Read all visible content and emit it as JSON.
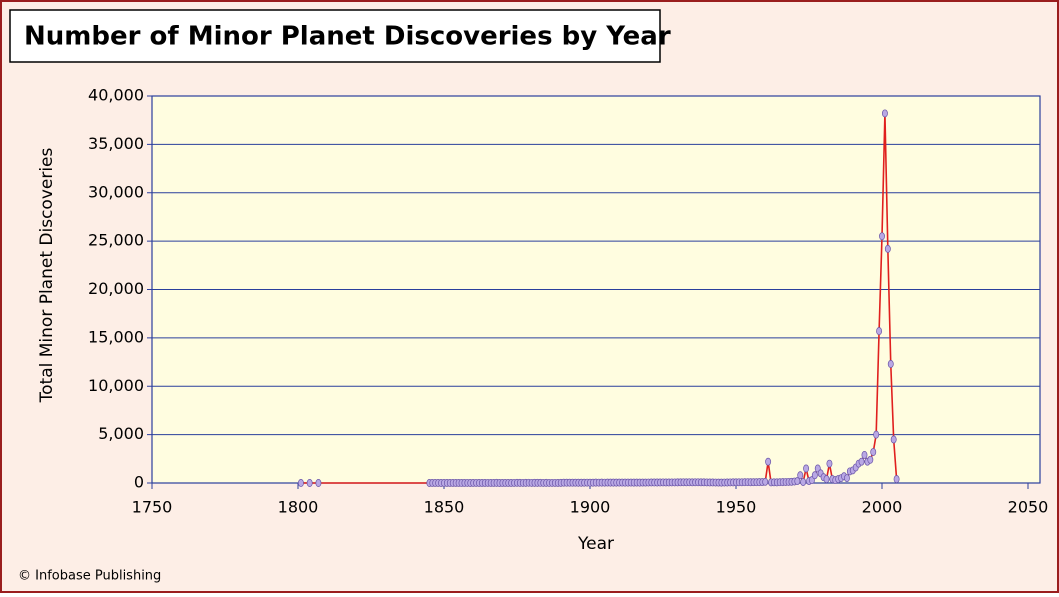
{
  "chart_data": {
    "type": "line",
    "title": "Number of Minor Planet Discoveries by Year",
    "xlabel": "Year",
    "ylabel": "Total Minor Planet Discoveries",
    "credit": "© Infobase Publishing",
    "color": "#e0201e",
    "marker_color": "#b9a8e4",
    "grid": true,
    "xlim": [
      1750,
      2050
    ],
    "xticks": [
      1750,
      1800,
      1850,
      1900,
      1950,
      2000,
      2050
    ],
    "ylim": [
      0,
      40000
    ],
    "yticks": [
      0,
      {
        "value": 5000,
        "label": "5,000"
      },
      {
        "value": 10000,
        "label": "10,000"
      },
      {
        "value": 15000,
        "label": "15,000"
      },
      {
        "value": 20000,
        "label": "20,000"
      },
      {
        "value": 25000,
        "label": "25,000"
      },
      {
        "value": 30000,
        "label": "30,000"
      },
      {
        "value": 35000,
        "label": "35,000"
      },
      {
        "value": 40000,
        "label": "40,000"
      }
    ],
    "x": [
      1801,
      1804,
      1807,
      1845,
      1846,
      1847,
      1848,
      1849,
      1850,
      1851,
      1852,
      1853,
      1854,
      1855,
      1856,
      1857,
      1858,
      1859,
      1860,
      1861,
      1862,
      1863,
      1864,
      1865,
      1866,
      1867,
      1868,
      1869,
      1870,
      1871,
      1872,
      1873,
      1874,
      1875,
      1876,
      1877,
      1878,
      1879,
      1880,
      1881,
      1882,
      1883,
      1884,
      1885,
      1886,
      1887,
      1888,
      1889,
      1890,
      1891,
      1892,
      1893,
      1894,
      1895,
      1896,
      1897,
      1898,
      1899,
      1900,
      1901,
      1902,
      1903,
      1904,
      1905,
      1906,
      1907,
      1908,
      1909,
      1910,
      1911,
      1912,
      1913,
      1914,
      1915,
      1916,
      1917,
      1918,
      1919,
      1920,
      1921,
      1922,
      1923,
      1924,
      1925,
      1926,
      1927,
      1928,
      1929,
      1930,
      1931,
      1932,
      1933,
      1934,
      1935,
      1936,
      1937,
      1938,
      1939,
      1940,
      1941,
      1942,
      1943,
      1944,
      1945,
      1946,
      1947,
      1948,
      1949,
      1950,
      1951,
      1952,
      1953,
      1954,
      1955,
      1956,
      1957,
      1958,
      1959,
      1960,
      1961,
      1962,
      1963,
      1964,
      1965,
      1966,
      1967,
      1968,
      1969,
      1970,
      1971,
      1972,
      1973,
      1974,
      1975,
      1976,
      1977,
      1978,
      1979,
      1980,
      1981,
      1982,
      1983,
      1984,
      1985,
      1986,
      1987,
      1988,
      1989,
      1990,
      1991,
      1992,
      1993,
      1994,
      1995,
      1996,
      1997,
      1998,
      1999,
      2000,
      2001,
      2002,
      2003,
      2004,
      2005
    ],
    "values": [
      2,
      1,
      1,
      1,
      3,
      4,
      3,
      1,
      3,
      5,
      4,
      4,
      6,
      3,
      2,
      4,
      8,
      1,
      5,
      9,
      4,
      6,
      4,
      7,
      6,
      5,
      12,
      1,
      5,
      5,
      6,
      3,
      8,
      17,
      12,
      10,
      12,
      20,
      8,
      13,
      12,
      15,
      10,
      13,
      11,
      9,
      7,
      6,
      12,
      30,
      28,
      31,
      28,
      30,
      25,
      27,
      30,
      35,
      25,
      32,
      40,
      35,
      38,
      37,
      42,
      40,
      38,
      39,
      44,
      45,
      40,
      38,
      45,
      39,
      42,
      40,
      45,
      42,
      50,
      55,
      54,
      52,
      58,
      60,
      55,
      57,
      62,
      60,
      65,
      70,
      72,
      68,
      75,
      70,
      72,
      74,
      68,
      70,
      60,
      55,
      58,
      50,
      45,
      40,
      48,
      52,
      60,
      65,
      70,
      75,
      72,
      80,
      85,
      78,
      82,
      80,
      90,
      95,
      120,
      2200,
      60,
      70,
      65,
      80,
      90,
      100,
      110,
      120,
      150,
      200,
      800,
      100,
      1500,
      200,
      300,
      800,
      1500,
      1000,
      600,
      400,
      2000,
      400,
      300,
      400,
      500,
      700,
      500,
      1200,
      1300,
      1600,
      2000,
      2200,
      2900,
      2200,
      2400,
      3200,
      5000,
      15700,
      25500,
      38200,
      24200,
      12300,
      4500,
      400
    ]
  }
}
